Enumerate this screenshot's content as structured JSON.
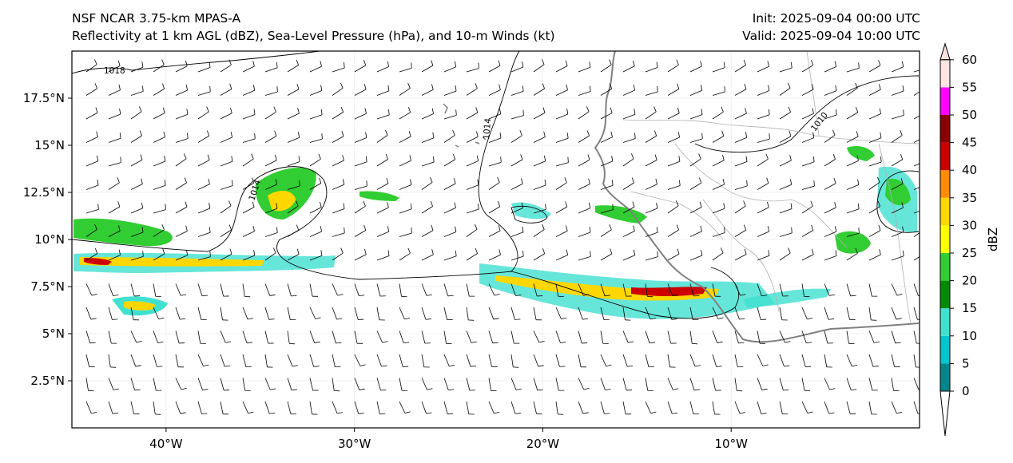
{
  "header": {
    "model": "NSF NCAR 3.75-km MPAS-A",
    "fields": "Reflectivity at 1 km AGL (dBZ), Sea-Level Pressure (hPa), and 10-m Winds (kt)",
    "init": "Init: 2025-09-04 00:00 UTC",
    "valid": "Valid: 2025-09-04 10:00 UTC"
  },
  "map": {
    "lon_range": [
      -45,
      0
    ],
    "lat_range": [
      0,
      20
    ],
    "lat_ticks": [
      {
        "value": 2.5,
        "label": "2.5°N"
      },
      {
        "value": 5,
        "label": "5°N"
      },
      {
        "value": 7.5,
        "label": "7.5°N"
      },
      {
        "value": 10,
        "label": "10°N"
      },
      {
        "value": 12.5,
        "label": "12.5°N"
      },
      {
        "value": 15,
        "label": "15°N"
      },
      {
        "value": 17.5,
        "label": "17.5°N"
      }
    ],
    "lon_ticks": [
      {
        "value": -40,
        "label": "40°W"
      },
      {
        "value": -30,
        "label": "30°W"
      },
      {
        "value": -20,
        "label": "20°W"
      },
      {
        "value": -10,
        "label": "10°W"
      }
    ],
    "isobar_labels": [
      "1018",
      "1014",
      "1014",
      "1010"
    ],
    "isobar_color": "#000000",
    "coastline_color": "#808080",
    "border_color": "#b0b0b0"
  },
  "colorbar": {
    "label": "dBZ",
    "ticks": [
      "0",
      "5",
      "10",
      "15",
      "20",
      "25",
      "30",
      "35",
      "40",
      "45",
      "50",
      "55",
      "60"
    ],
    "colors": [
      "#00868b",
      "#00c5cd",
      "#40e0d0",
      "#008b00",
      "#32cd32",
      "#ffff00",
      "#ffd700",
      "#ff8c00",
      "#cd0000",
      "#8b0000",
      "#ff00ff",
      "#ffe4e1"
    ],
    "under_color": "#ffffff",
    "over_color": "#ffe4e1"
  }
}
